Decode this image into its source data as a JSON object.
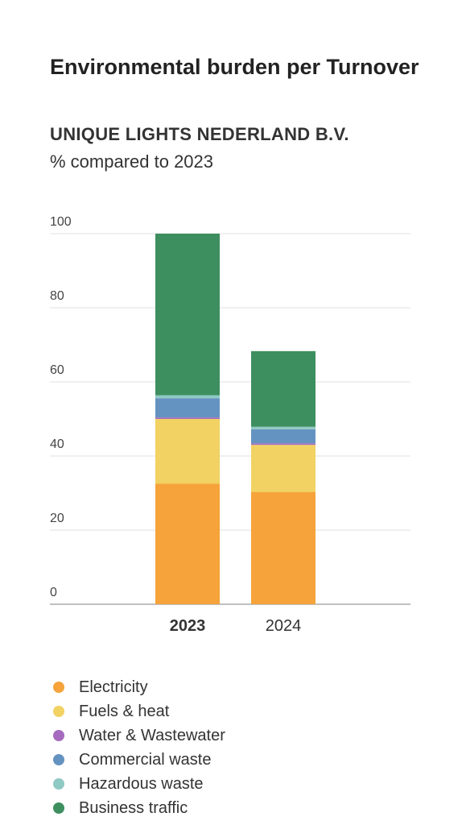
{
  "chart_data": {
    "type": "bar",
    "stacked": true,
    "title": "Environmental burden per Turnover",
    "subtitle": "UNIQUE LIGHTS NEDERLAND B.V.",
    "ylabel": "% compared to 2023",
    "categories": [
      "2023",
      "2024"
    ],
    "highlighted_category": "2023",
    "ylim": [
      0,
      100
    ],
    "yticks": [
      0,
      20,
      40,
      60,
      80,
      100
    ],
    "grid": true,
    "legend_position": "bottom",
    "series": [
      {
        "name": "Electricity",
        "color": "#f5a33a",
        "values": [
          32.5,
          30.3
        ]
      },
      {
        "name": "Fuels & heat",
        "color": "#f1d262",
        "values": [
          17.5,
          12.7
        ]
      },
      {
        "name": "Water & Wastewater",
        "color": "#a66bbf",
        "values": [
          0.4,
          0.4
        ]
      },
      {
        "name": "Commercial waste",
        "color": "#6593c1",
        "values": [
          5.2,
          3.8
        ]
      },
      {
        "name": "Hazardous waste",
        "color": "#8fc9c3",
        "values": [
          0.8,
          0.7
        ]
      },
      {
        "name": "Business traffic",
        "color": "#3e8f5f",
        "values": [
          43.6,
          20.4
        ]
      }
    ]
  }
}
